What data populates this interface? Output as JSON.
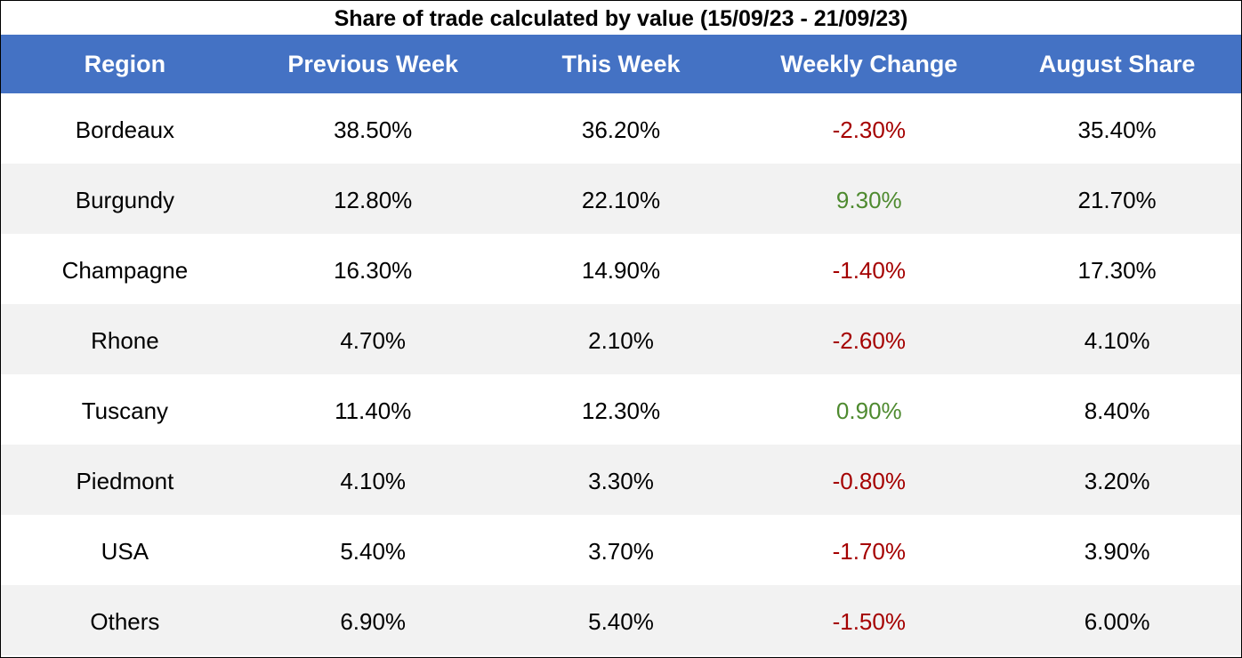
{
  "title": "Share of trade calculated by value (15/09/23 - 21/09/23)",
  "colors": {
    "header_bg": "#4472c4",
    "header_text": "#ffffff",
    "negative": "#a50000",
    "positive": "#4e8a2f",
    "band": "#f2f2f2"
  },
  "chart_data": {
    "type": "table",
    "title": "Share of trade calculated by value (15/09/23 - 21/09/23)",
    "columns": [
      "Region",
      "Previous Week",
      "This Week",
      "Weekly Change",
      "August Share"
    ],
    "rows": [
      {
        "region": "Bordeaux",
        "previous_week": "38.50%",
        "this_week": "36.20%",
        "weekly_change": "-2.30%",
        "august_share": "35.40%",
        "change_sign": "neg"
      },
      {
        "region": "Burgundy",
        "previous_week": "12.80%",
        "this_week": "22.10%",
        "weekly_change": "9.30%",
        "august_share": "21.70%",
        "change_sign": "pos"
      },
      {
        "region": "Champagne",
        "previous_week": "16.30%",
        "this_week": "14.90%",
        "weekly_change": "-1.40%",
        "august_share": "17.30%",
        "change_sign": "neg"
      },
      {
        "region": "Rhone",
        "previous_week": "4.70%",
        "this_week": "2.10%",
        "weekly_change": "-2.60%",
        "august_share": "4.10%",
        "change_sign": "neg"
      },
      {
        "region": "Tuscany",
        "previous_week": "11.40%",
        "this_week": "12.30%",
        "weekly_change": "0.90%",
        "august_share": "8.40%",
        "change_sign": "pos"
      },
      {
        "region": "Piedmont",
        "previous_week": "4.10%",
        "this_week": "3.30%",
        "weekly_change": "-0.80%",
        "august_share": "3.20%",
        "change_sign": "neg"
      },
      {
        "region": "USA",
        "previous_week": "5.40%",
        "this_week": "3.70%",
        "weekly_change": "-1.70%",
        "august_share": "3.90%",
        "change_sign": "neg"
      },
      {
        "region": "Others",
        "previous_week": "6.90%",
        "this_week": "5.40%",
        "weekly_change": "-1.50%",
        "august_share": "6.00%",
        "change_sign": "neg"
      }
    ]
  }
}
